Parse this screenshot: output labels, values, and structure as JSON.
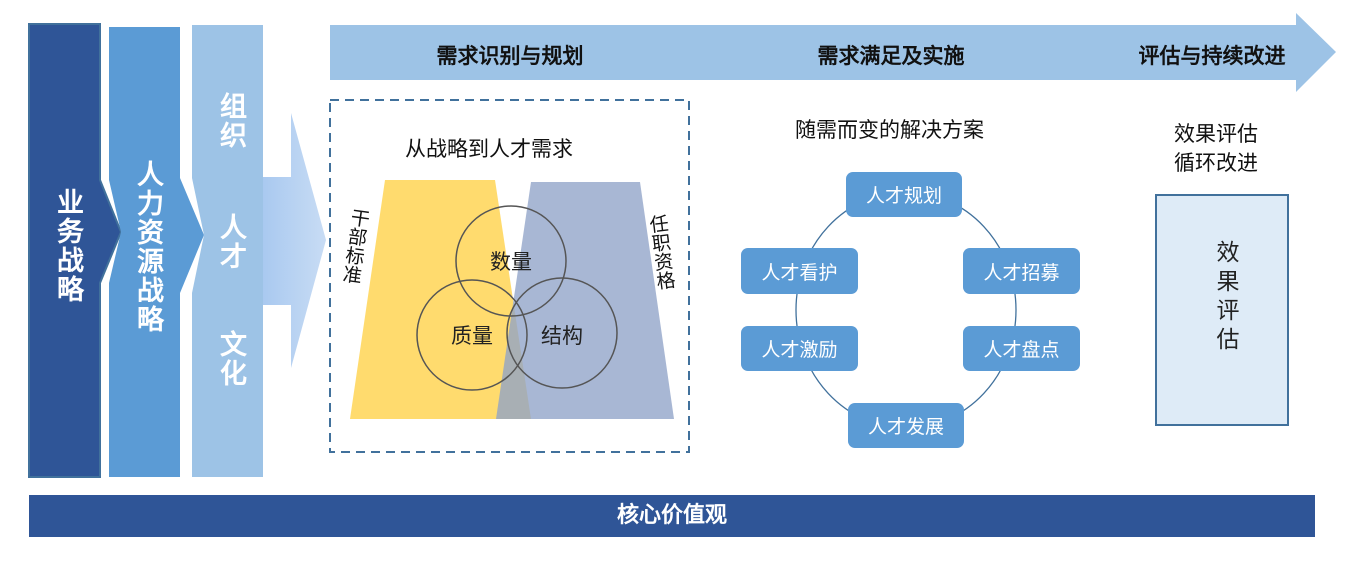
{
  "colors": {
    "dark": "#2f5597",
    "mid": "#5b9bd5",
    "light": "#9dc3e6",
    "yellow": "#ffd966",
    "slate": "#8fa3c8",
    "panel": "#deebf7"
  },
  "columns": {
    "business": "业务战略",
    "hr": "人力资源战略",
    "org": [
      "组织",
      "人才",
      "文化"
    ]
  },
  "stages": [
    "需求识别与规划",
    "需求满足及实施",
    "评估与持续改进"
  ],
  "section1": {
    "title": "从战略到人才需求",
    "left_label": "干部标准",
    "right_label": "任职资格",
    "circles": [
      "数量",
      "质量",
      "结构"
    ]
  },
  "section2": {
    "title": "随需而变的解决方案",
    "items": [
      "人才规划",
      "人才看护",
      "人才招募",
      "人才激励",
      "人才盘点",
      "人才发展"
    ]
  },
  "section3": {
    "title_line1": "效果评估",
    "title_line2": "循环改进",
    "box": "效果评估"
  },
  "footer": "核心价值观"
}
